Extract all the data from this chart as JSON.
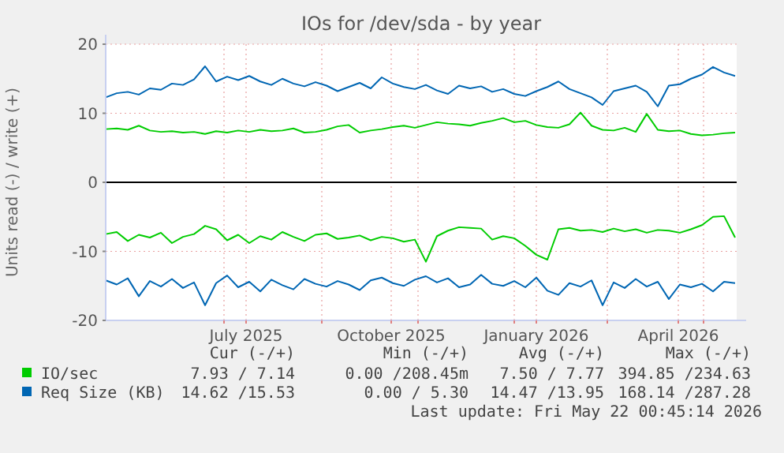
{
  "chart_data": {
    "type": "line",
    "title": "IOs for /dev/sda - by year",
    "ylabel": "Units read (-) / write (+)",
    "x": [
      "2025-04-17",
      "2025-04-24",
      "2025-05-01",
      "2025-05-08",
      "2025-05-15",
      "2025-05-22",
      "2025-05-29",
      "2025-06-05",
      "2025-06-12",
      "2025-06-19",
      "2025-06-26",
      "2025-07-03",
      "2025-07-10",
      "2025-07-17",
      "2025-07-24",
      "2025-07-31",
      "2025-08-07",
      "2025-08-14",
      "2025-08-21",
      "2025-08-28",
      "2025-09-04",
      "2025-09-11",
      "2025-09-18",
      "2025-09-25",
      "2025-10-02",
      "2025-10-09",
      "2025-10-16",
      "2025-10-23",
      "2025-10-30",
      "2025-11-06",
      "2025-11-13",
      "2025-11-20",
      "2025-11-27",
      "2025-12-04",
      "2025-12-11",
      "2025-12-18",
      "2025-12-25",
      "2026-01-01",
      "2026-01-08",
      "2026-01-15",
      "2026-01-22",
      "2026-01-29",
      "2026-02-05",
      "2026-02-12",
      "2026-02-19",
      "2026-02-26",
      "2026-03-05",
      "2026-03-12",
      "2026-03-19",
      "2026-03-26",
      "2026-04-02",
      "2026-04-09",
      "2026-04-16",
      "2026-04-23",
      "2026-04-30",
      "2026-05-07",
      "2026-05-14",
      "2026-05-21"
    ],
    "xlim": [
      "2025-04-17",
      "2026-05-22"
    ],
    "xticks": [
      {
        "value": "2025-07-01",
        "label": null
      },
      {
        "value": "2025-07-15",
        "label": "July 2025"
      },
      {
        "value": "2025-09-01",
        "label": null
      },
      {
        "value": "2025-10-15",
        "label": "October 2025"
      },
      {
        "value": "2025-11-01",
        "label": null
      },
      {
        "value": "2026-01-01",
        "label": null
      },
      {
        "value": "2026-01-15",
        "label": "January 2026"
      },
      {
        "value": "2026-03-01",
        "label": null
      },
      {
        "value": "2026-04-15",
        "label": "April 2026"
      },
      {
        "value": "2026-05-01",
        "label": null
      }
    ],
    "ylim": [
      -20,
      20
    ],
    "yticks": [
      -20,
      -10,
      0,
      10,
      20
    ],
    "grid": true,
    "legend": "bottom",
    "ref_lines": [
      {
        "axis": "y",
        "value": 0,
        "color": "#000000"
      }
    ],
    "series": [
      {
        "name": "IO/sec",
        "color": "#00cc00",
        "values": [
          7.7,
          7.8,
          7.6,
          8.2,
          7.5,
          7.3,
          7.4,
          7.2,
          7.3,
          7.0,
          7.4,
          7.2,
          7.5,
          7.3,
          7.6,
          7.4,
          7.5,
          7.8,
          7.2,
          7.3,
          7.6,
          8.1,
          8.3,
          7.2,
          7.5,
          7.7,
          8.0,
          8.2,
          7.9,
          8.3,
          8.7,
          8.5,
          8.4,
          8.2,
          8.6,
          8.9,
          9.3,
          8.7,
          8.9,
          8.3,
          8.0,
          7.9,
          8.4,
          10.1,
          8.2,
          7.6,
          7.5,
          7.9,
          7.3,
          9.9,
          7.6,
          7.4,
          7.5,
          7.0,
          6.8,
          6.9,
          7.1,
          7.2
        ]
      },
      {
        "color": "#00cc00",
        "values": [
          -7.5,
          -7.2,
          -8.5,
          -7.6,
          -8.0,
          -7.3,
          -8.8,
          -7.9,
          -7.5,
          -6.3,
          -6.8,
          -8.4,
          -7.6,
          -8.8,
          -7.8,
          -8.3,
          -7.2,
          -7.9,
          -8.5,
          -7.6,
          -7.4,
          -8.2,
          -8.0,
          -7.7,
          -8.4,
          -7.9,
          -8.1,
          -8.6,
          -8.3,
          -11.5,
          -7.8,
          -7.0,
          -6.5,
          -6.6,
          -6.7,
          -8.3,
          -7.8,
          -8.1,
          -9.2,
          -10.5,
          -11.2,
          -6.8,
          -6.6,
          -7.0,
          -6.9,
          -7.2,
          -6.7,
          -7.1,
          -6.8,
          -7.3,
          -6.9,
          -7.0,
          -7.3,
          -6.8,
          -6.2,
          -5.0,
          -4.9,
          -8.0
        ]
      },
      {
        "name": "Req Size (KB)",
        "color": "#0066b3",
        "values": [
          12.3,
          12.9,
          13.1,
          12.7,
          13.6,
          13.4,
          14.3,
          14.1,
          14.9,
          16.8,
          14.6,
          15.3,
          14.8,
          15.4,
          14.6,
          14.1,
          15.0,
          14.3,
          13.9,
          14.5,
          14.0,
          13.2,
          13.8,
          14.4,
          13.6,
          15.2,
          14.3,
          13.8,
          13.5,
          14.1,
          13.3,
          12.8,
          14.0,
          13.6,
          13.9,
          13.1,
          13.5,
          12.8,
          12.5,
          13.2,
          13.8,
          14.6,
          13.5,
          12.9,
          12.3,
          11.2,
          13.2,
          13.6,
          14.0,
          13.1,
          11.0,
          14.0,
          14.2,
          15.0,
          15.6,
          16.7,
          15.9,
          15.4
        ]
      },
      {
        "color": "#0066b3",
        "values": [
          -14.2,
          -14.8,
          -13.9,
          -16.5,
          -14.3,
          -15.1,
          -14.0,
          -15.3,
          -14.5,
          -17.8,
          -14.6,
          -13.5,
          -15.2,
          -14.4,
          -15.8,
          -14.1,
          -14.9,
          -15.5,
          -14.0,
          -14.7,
          -15.1,
          -14.3,
          -14.8,
          -15.6,
          -14.2,
          -13.8,
          -14.6,
          -15.0,
          -14.1,
          -13.6,
          -14.5,
          -13.9,
          -15.2,
          -14.8,
          -13.4,
          -14.7,
          -15.0,
          -14.3,
          -15.2,
          -13.8,
          -15.7,
          -16.3,
          -14.6,
          -15.1,
          -14.2,
          -17.8,
          -14.5,
          -15.3,
          -14.0,
          -15.1,
          -14.4,
          -16.9,
          -14.8,
          -15.2,
          -14.7,
          -15.8,
          -14.4,
          -14.6
        ]
      }
    ],
    "annotations": [
      "Cur (-/+)",
      "Min (-/+)",
      "Avg (-/+)",
      "Max (-/+)",
      "7.93 / 7.14",
      "0.00 /208.45m",
      "7.50 / 7.77",
      "394.85 /234.63",
      "14.62 /15.53",
      "0.00 / 5.30",
      "14.47 /13.95",
      "168.14 /287.28",
      "Last update: Fri May 22 00:45:14 2026"
    ]
  }
}
